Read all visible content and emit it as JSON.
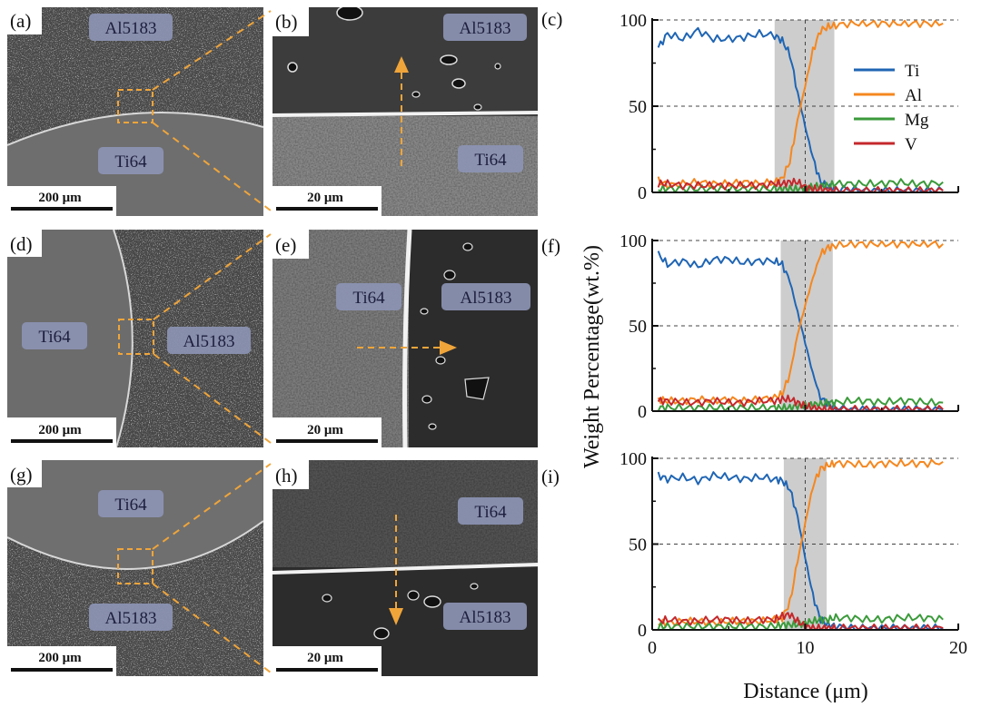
{
  "panels": {
    "a": {
      "label": "(a)",
      "top_label": "Al5183",
      "bottom_label": "Ti64",
      "scale_bar": "200 μm"
    },
    "b": {
      "label": "(b)",
      "top_label": "Al5183",
      "bottom_label": "Ti64",
      "scale_bar": "20 μm"
    },
    "d": {
      "label": "(d)",
      "left_label": "Ti64",
      "right_label": "Al5183",
      "scale_bar": "200 μm"
    },
    "e": {
      "label": "(e)",
      "left_label": "Ti64",
      "right_label": "Al5183",
      "scale_bar": "20 μm"
    },
    "g": {
      "label": "(g)",
      "top_label": "Ti64",
      "bottom_label": "Al5183",
      "scale_bar": "200 μm"
    },
    "h": {
      "label": "(h)",
      "top_label": "Ti64",
      "bottom_label": "Al5183",
      "scale_bar": "20 μm"
    }
  },
  "plot_labels": [
    "(c)",
    "(f)",
    "(i)"
  ],
  "colors": {
    "Ti": "#1f65b4",
    "Al": "#f5871f",
    "Mg": "#3b9a3b",
    "V": "#c4282c",
    "arrow": "#f0a53a",
    "band": "#c8c8c8",
    "label_box": "#8c94b4"
  },
  "chart_data": [
    {
      "type": "line",
      "panel": "(c)",
      "xlabel": "Distance (μm)",
      "ylabel": "Weight Percentage(wt.%)",
      "xlim": [
        0,
        20
      ],
      "ylim": [
        0,
        100
      ],
      "y_ticks": [
        "0",
        "50",
        "100"
      ],
      "shaded_interval": [
        8.0,
        11.9
      ],
      "grid": "dashed at y=50,100 and x=10",
      "legend_position": "upper-right",
      "x": [
        0.4,
        1,
        2,
        3,
        4,
        5,
        6,
        7,
        8,
        8.5,
        9,
        9.5,
        10,
        10.5,
        11,
        11.5,
        12,
        13,
        14,
        15,
        16,
        17,
        18,
        19
      ],
      "series": [
        {
          "name": "Ti",
          "values": [
            84,
            92,
            89,
            94,
            89,
            89,
            90,
            92,
            91,
            88,
            80,
            58,
            38,
            20,
            6,
            3,
            2,
            2,
            1,
            1,
            1,
            1,
            1,
            1
          ]
        },
        {
          "name": "Al",
          "values": [
            7,
            4,
            5,
            6,
            5,
            5,
            6,
            5,
            6,
            8,
            18,
            42,
            62,
            82,
            94,
            96,
            97,
            98,
            98,
            98,
            98,
            98,
            98,
            98
          ]
        },
        {
          "name": "Mg",
          "values": [
            2,
            2,
            2,
            2,
            2,
            2,
            2,
            2,
            2,
            2,
            2,
            2,
            3,
            3,
            4,
            4,
            5,
            5,
            5,
            5,
            6,
            5,
            5,
            6
          ]
        },
        {
          "name": "V",
          "values": [
            5,
            5,
            4,
            4,
            4,
            4,
            4,
            4,
            5,
            5,
            6,
            6,
            3,
            2,
            2,
            1,
            1,
            1,
            1,
            1,
            1,
            1,
            1,
            1
          ]
        }
      ]
    },
    {
      "type": "line",
      "panel": "(f)",
      "xlim": [
        0,
        20
      ],
      "ylim": [
        0,
        100
      ],
      "y_ticks": [
        "0",
        "50",
        "100"
      ],
      "shaded_interval": [
        8.4,
        11.8
      ],
      "x": [
        0.4,
        1,
        2,
        3,
        4,
        5,
        6,
        7,
        8,
        8.5,
        9,
        9.5,
        10,
        10.5,
        11,
        11.5,
        12,
        13,
        14,
        15,
        16,
        17,
        18,
        19
      ],
      "series": [
        {
          "name": "Ti",
          "values": [
            92,
            86,
            88,
            85,
            89,
            89,
            87,
            88,
            88,
            86,
            76,
            58,
            40,
            22,
            8,
            4,
            2,
            1,
            1,
            1,
            1,
            1,
            1,
            1
          ]
        },
        {
          "name": "Al",
          "values": [
            7,
            6,
            6,
            7,
            6,
            7,
            6,
            7,
            8,
            10,
            22,
            45,
            62,
            78,
            92,
            96,
            97,
            98,
            98,
            98,
            98,
            98,
            98,
            98
          ]
        },
        {
          "name": "Mg",
          "values": [
            2,
            2,
            2,
            2,
            2,
            2,
            2,
            2,
            2,
            2,
            2,
            3,
            3,
            4,
            4,
            5,
            5,
            6,
            6,
            5,
            6,
            6,
            5,
            5
          ]
        },
        {
          "name": "V",
          "values": [
            6,
            6,
            5,
            5,
            6,
            5,
            5,
            6,
            6,
            7,
            7,
            5,
            3,
            2,
            1,
            1,
            1,
            1,
            1,
            1,
            1,
            1,
            1,
            1
          ]
        }
      ]
    },
    {
      "type": "line",
      "panel": "(i)",
      "xlim": [
        0,
        20
      ],
      "ylim": [
        0,
        100
      ],
      "y_ticks": [
        "0",
        "50",
        "100"
      ],
      "x_ticks": [
        "0",
        "10",
        "20"
      ],
      "shaded_interval": [
        8.6,
        11.4
      ],
      "x": [
        0.4,
        1,
        2,
        3,
        4,
        5,
        6,
        7,
        8,
        8.5,
        9,
        9.5,
        10,
        10.5,
        11,
        11.5,
        12,
        13,
        14,
        15,
        16,
        17,
        18,
        19
      ],
      "series": [
        {
          "name": "Ti",
          "values": [
            90,
            88,
            89,
            87,
            90,
            89,
            88,
            89,
            88,
            87,
            82,
            66,
            42,
            20,
            6,
            3,
            2,
            1,
            1,
            1,
            1,
            1,
            1,
            1
          ]
        },
        {
          "name": "Al",
          "values": [
            4,
            4,
            5,
            5,
            4,
            5,
            5,
            5,
            6,
            7,
            16,
            40,
            62,
            84,
            94,
            96,
            97,
            97,
            96,
            97,
            97,
            97,
            97,
            98
          ]
        },
        {
          "name": "Mg",
          "values": [
            2,
            2,
            2,
            2,
            2,
            2,
            2,
            2,
            2,
            3,
            3,
            3,
            4,
            5,
            6,
            6,
            7,
            7,
            6,
            6,
            7,
            7,
            7,
            6
          ]
        },
        {
          "name": "V",
          "values": [
            5,
            6,
            5,
            5,
            6,
            6,
            5,
            6,
            6,
            8,
            9,
            5,
            2,
            1,
            1,
            1,
            1,
            1,
            1,
            1,
            1,
            1,
            1,
            1
          ]
        }
      ]
    }
  ]
}
